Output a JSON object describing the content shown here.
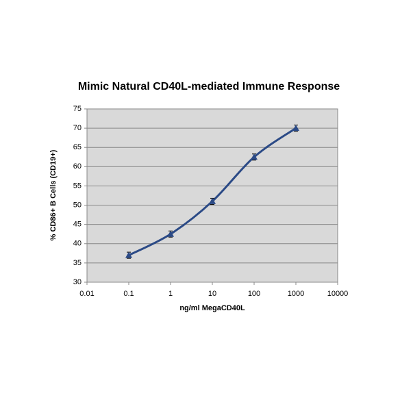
{
  "chart_data": {
    "type": "line",
    "title": "Mimic Natural CD40L-mediated Immune Response",
    "x_label": "ng/ml MegaCD40L",
    "y_label": "% CD86+ B Cells (CD19+)",
    "xscale": "log",
    "grid": true,
    "x": [
      0.1,
      1,
      10,
      100,
      1000
    ],
    "series": [
      {
        "name": "CD86+ B Cells",
        "color": "#2b4a86",
        "values": [
          37,
          42.5,
          51,
          62.5,
          70
        ],
        "errors": [
          0.8,
          0.8,
          0.8,
          0.8,
          0.8
        ]
      }
    ],
    "xlim": [
      0.01,
      10000
    ],
    "xticks": [
      0.01,
      0.1,
      1,
      10,
      100,
      1000,
      10000
    ],
    "ylim": [
      30,
      75
    ],
    "yticks": [
      30,
      35,
      40,
      45,
      50,
      55,
      60,
      65,
      70,
      75
    ]
  }
}
